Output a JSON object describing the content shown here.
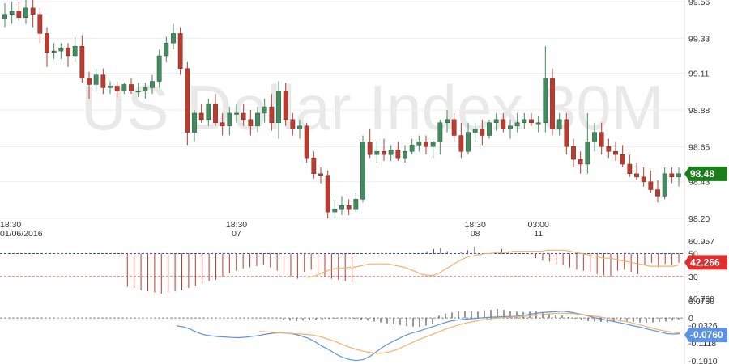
{
  "watermark": "US Dollar Index 30M",
  "chart_data": [
    {
      "type": "candlestick",
      "name": "main",
      "title": "US Dollar Index 30M",
      "last_value": "98.48",
      "colors": {
        "up": "#3f8f5e",
        "down": "#c0392b",
        "badge": "#1a7f1a"
      },
      "y_ticks": [
        "99.56",
        "99.33",
        "99.11",
        "98.88",
        "98.65",
        "98.43",
        "98.20"
      ],
      "y_range": [
        98.2,
        99.56
      ],
      "x_labels": [
        {
          "i": 0,
          "time": "18:30",
          "date": "01/06/2016"
        },
        {
          "i": 33,
          "time": "18:30",
          "date": "07"
        },
        {
          "i": 67,
          "time": "18:30",
          "date": "08"
        },
        {
          "i": 76,
          "time": "03:00",
          "date": "11"
        }
      ],
      "candles": [
        [
          99.45,
          99.55,
          99.4,
          99.48
        ],
        [
          99.48,
          99.56,
          99.42,
          99.5
        ],
        [
          99.5,
          99.56,
          99.44,
          99.46
        ],
        [
          99.46,
          99.58,
          99.42,
          99.52
        ],
        [
          99.52,
          99.58,
          99.4,
          99.48
        ],
        [
          99.48,
          99.52,
          99.3,
          99.36
        ],
        [
          99.36,
          99.4,
          99.15,
          99.24
        ],
        [
          99.24,
          99.3,
          99.2,
          99.25
        ],
        [
          99.25,
          99.3,
          99.2,
          99.27
        ],
        [
          99.27,
          99.3,
          99.15,
          99.22
        ],
        [
          99.22,
          99.34,
          99.18,
          99.28
        ],
        [
          99.28,
          99.35,
          99.05,
          99.08
        ],
        [
          99.08,
          99.12,
          98.95,
          99.04
        ],
        [
          99.04,
          99.14,
          99.0,
          99.1
        ],
        [
          99.1,
          99.14,
          98.98,
          99.02
        ],
        [
          99.02,
          99.06,
          98.98,
          99.03
        ],
        [
          99.03,
          99.06,
          98.96,
          99.0
        ],
        [
          99.0,
          99.05,
          98.98,
          99.04
        ],
        [
          99.04,
          99.08,
          98.98,
          99.0
        ],
        [
          99.0,
          99.05,
          98.96,
          99.0
        ],
        [
          99.0,
          99.05,
          98.95,
          99.02
        ],
        [
          99.02,
          99.1,
          98.98,
          99.06
        ],
        [
          99.06,
          99.26,
          99.02,
          99.22
        ],
        [
          99.22,
          99.34,
          99.18,
          99.3
        ],
        [
          99.3,
          99.42,
          99.26,
          99.36
        ],
        [
          99.36,
          99.4,
          99.1,
          99.14
        ],
        [
          99.14,
          99.18,
          98.66,
          98.74
        ],
        [
          98.74,
          98.88,
          98.68,
          98.86
        ],
        [
          98.86,
          98.92,
          98.8,
          98.82
        ],
        [
          98.82,
          98.95,
          98.78,
          98.92
        ],
        [
          98.92,
          98.98,
          98.78,
          98.8
        ],
        [
          98.8,
          98.86,
          98.72,
          98.78
        ],
        [
          98.78,
          98.9,
          98.72,
          98.86
        ],
        [
          98.86,
          98.92,
          98.8,
          98.86
        ],
        [
          98.86,
          98.92,
          98.78,
          98.82
        ],
        [
          98.82,
          98.88,
          98.72,
          98.78
        ],
        [
          98.78,
          98.9,
          98.74,
          98.86
        ],
        [
          98.86,
          98.95,
          98.8,
          98.9
        ],
        [
          98.9,
          98.98,
          98.75,
          98.8
        ],
        [
          98.8,
          99.06,
          98.7,
          99.0
        ],
        [
          99.0,
          99.05,
          98.78,
          98.82
        ],
        [
          98.82,
          98.86,
          98.72,
          98.76
        ],
        [
          98.76,
          98.82,
          98.7,
          98.78
        ],
        [
          98.78,
          98.8,
          98.55,
          98.58
        ],
        [
          98.58,
          98.62,
          98.45,
          98.48
        ],
        [
          98.48,
          98.52,
          98.42,
          98.47
        ],
        [
          98.47,
          98.5,
          98.2,
          98.24
        ],
        [
          98.24,
          98.32,
          98.2,
          98.26
        ],
        [
          98.26,
          98.34,
          98.22,
          98.28
        ],
        [
          98.28,
          98.32,
          98.22,
          98.26
        ],
        [
          98.26,
          98.36,
          98.24,
          98.32
        ],
        [
          98.32,
          98.72,
          98.3,
          98.68
        ],
        [
          98.68,
          98.76,
          98.58,
          98.6
        ],
        [
          98.6,
          98.68,
          98.55,
          98.62
        ],
        [
          98.62,
          98.7,
          98.56,
          98.6
        ],
        [
          98.6,
          98.66,
          98.56,
          98.63
        ],
        [
          98.63,
          98.68,
          98.56,
          98.58
        ],
        [
          98.58,
          98.66,
          98.55,
          98.62
        ],
        [
          98.62,
          98.7,
          98.6,
          98.66
        ],
        [
          98.66,
          98.72,
          98.62,
          98.68
        ],
        [
          98.68,
          98.72,
          98.6,
          98.65
        ],
        [
          98.65,
          98.7,
          98.58,
          98.68
        ],
        [
          98.68,
          98.82,
          98.6,
          98.8
        ],
        [
          98.8,
          98.88,
          98.74,
          98.82
        ],
        [
          98.82,
          98.86,
          98.68,
          98.72
        ],
        [
          98.72,
          98.8,
          98.58,
          98.62
        ],
        [
          98.62,
          98.8,
          98.6,
          98.74
        ],
        [
          98.74,
          98.8,
          98.68,
          98.76
        ],
        [
          98.76,
          98.82,
          98.66,
          98.72
        ],
        [
          98.72,
          98.82,
          98.7,
          98.8
        ],
        [
          98.8,
          98.86,
          98.75,
          98.82
        ],
        [
          98.82,
          98.86,
          98.74,
          98.76
        ],
        [
          98.76,
          98.82,
          98.7,
          98.78
        ],
        [
          98.78,
          98.86,
          98.74,
          98.8
        ],
        [
          98.8,
          98.86,
          98.76,
          98.82
        ],
        [
          98.82,
          98.86,
          98.78,
          98.8
        ],
        [
          98.8,
          98.84,
          98.74,
          98.8
        ],
        [
          98.8,
          99.28,
          98.74,
          99.08
        ],
        [
          99.08,
          99.14,
          98.72,
          98.76
        ],
        [
          98.76,
          98.86,
          98.72,
          98.82
        ],
        [
          98.82,
          98.86,
          98.6,
          98.65
        ],
        [
          98.65,
          98.7,
          98.52,
          98.57
        ],
        [
          98.57,
          98.62,
          98.48,
          98.54
        ],
        [
          98.54,
          98.86,
          98.48,
          98.68
        ],
        [
          98.68,
          98.8,
          98.62,
          98.74
        ],
        [
          98.74,
          98.8,
          98.6,
          98.65
        ],
        [
          98.65,
          98.7,
          98.58,
          98.62
        ],
        [
          98.62,
          98.68,
          98.56,
          98.6
        ],
        [
          98.6,
          98.66,
          98.52,
          98.54
        ],
        [
          98.54,
          98.6,
          98.46,
          98.48
        ],
        [
          98.48,
          98.55,
          98.44,
          98.46
        ],
        [
          98.46,
          98.52,
          98.4,
          98.43
        ],
        [
          98.43,
          98.5,
          98.36,
          98.38
        ],
        [
          98.38,
          98.44,
          98.3,
          98.34
        ],
        [
          98.34,
          98.52,
          98.32,
          98.48
        ],
        [
          98.48,
          98.52,
          98.42,
          98.46
        ],
        [
          98.46,
          98.52,
          98.4,
          98.48
        ]
      ]
    },
    {
      "type": "histogram",
      "name": "oscillator-1",
      "last_value": "42.266",
      "colors": {
        "bar": "#c0392b",
        "bar_pos": "#555555",
        "signal": "#f5b16a",
        "badge": "#e02f2f",
        "level": "#e57373",
        "zero": "#3b4fbf"
      },
      "y_ticks": [
        "60.957",
        "50",
        "30",
        "10.760"
      ],
      "y_range": [
        10.76,
        60.957
      ],
      "levels": [
        50,
        30
      ],
      "values": [
        50,
        50,
        50,
        50,
        50,
        50,
        50,
        50,
        50,
        50,
        50,
        50,
        50,
        50,
        50,
        50,
        50,
        50,
        21,
        20,
        18,
        17,
        16,
        15,
        16,
        17,
        18,
        20,
        22,
        24,
        26,
        27,
        30,
        33,
        35,
        37,
        38,
        39,
        40,
        38,
        35,
        32,
        30,
        28,
        34,
        36,
        33,
        30,
        28,
        27,
        26,
        25,
        50,
        50,
        50,
        50,
        50,
        50,
        50,
        50,
        50,
        50,
        52,
        54,
        55,
        52,
        50,
        51,
        53,
        56,
        50,
        50,
        50,
        54,
        52,
        50,
        50,
        50,
        46,
        44,
        43,
        41,
        40,
        38,
        36,
        35,
        34,
        32,
        31,
        30,
        35,
        36,
        34,
        32,
        40,
        42,
        38,
        41,
        40,
        42
      ],
      "signal": [
        null,
        null,
        null,
        null,
        null,
        null,
        null,
        null,
        null,
        null,
        null,
        null,
        null,
        null,
        null,
        null,
        null,
        null,
        null,
        null,
        null,
        null,
        null,
        null,
        null,
        null,
        null,
        null,
        null,
        null,
        null,
        null,
        null,
        null,
        null,
        null,
        null,
        null,
        null,
        null,
        null,
        null,
        null,
        null,
        null,
        null,
        null,
        null,
        null,
        null,
        null,
        null,
        null,
        29,
        30,
        32,
        34,
        36,
        37,
        37,
        38,
        38,
        39,
        40,
        41,
        41,
        41,
        41,
        40,
        39,
        38,
        36,
        34,
        32,
        31,
        31,
        33,
        36,
        39,
        42,
        45,
        47,
        48,
        49,
        50,
        50,
        51,
        51,
        51,
        52,
        52,
        52,
        52,
        52,
        52,
        53,
        53,
        53,
        53,
        52,
        51,
        50,
        49,
        48,
        47,
        46,
        46,
        45,
        44,
        43,
        42,
        41,
        40,
        39,
        39,
        39,
        39,
        39,
        40
      ]
    },
    {
      "type": "histogram",
      "name": "oscillator-2",
      "last_value": "-0.0760",
      "colors": {
        "bar": "#333333",
        "macd": "#5b93e6",
        "signal": "#f5b16a",
        "badge": "#5b93e6",
        "zero": "#888888"
      },
      "y_ticks": [
        "0.0760",
        "0",
        "-0.0326",
        "-0.1118",
        "-0.1910"
      ],
      "y_range": [
        -0.191,
        0.076
      ],
      "values": [
        0,
        0,
        0,
        0,
        0,
        0,
        0,
        0,
        0,
        0,
        0,
        0,
        0,
        0,
        0,
        0,
        0,
        0,
        0,
        0,
        0,
        0,
        0,
        0,
        0,
        0,
        0,
        0,
        0,
        0,
        0,
        0,
        0,
        0,
        0,
        0,
        0,
        0,
        0,
        0,
        0,
        0,
        0,
        -0.01,
        -0.012,
        -0.014,
        -0.012,
        -0.01,
        -0.008,
        -0.006,
        -0.004,
        -0.003,
        -0.002,
        0.0,
        -0.004,
        -0.008,
        -0.012,
        -0.016,
        -0.02,
        -0.024,
        -0.028,
        -0.032,
        -0.036,
        -0.038,
        -0.04,
        -0.034,
        -0.026,
        0.01,
        0.02,
        0.024,
        0.03,
        0.032,
        0.03,
        0.028,
        0.034,
        0.036,
        0.04,
        0.036,
        0.03,
        0.028,
        0.026,
        0.028,
        0.03,
        0.026,
        0.02,
        0.014,
        0.01,
        0.004,
        -0.004,
        -0.01,
        -0.014,
        -0.016,
        -0.018,
        -0.02,
        -0.018,
        -0.016,
        -0.014,
        -0.018,
        -0.02,
        -0.022,
        -0.02,
        -0.018,
        -0.016,
        -0.012,
        -0.006
      ],
      "macd": [
        -0.035,
        -0.04,
        -0.05,
        -0.065,
        -0.075,
        -0.08,
        -0.083,
        -0.085,
        -0.087,
        -0.088,
        -0.086,
        -0.082,
        -0.078,
        -0.072,
        -0.068,
        -0.066,
        -0.068,
        -0.072,
        -0.08,
        -0.09,
        -0.105,
        -0.125,
        -0.14,
        -0.16,
        -0.175,
        -0.185,
        -0.19,
        -0.186,
        -0.172,
        -0.15,
        -0.128,
        -0.11,
        -0.095,
        -0.08,
        -0.068,
        -0.06,
        -0.05,
        -0.04,
        -0.03,
        -0.02,
        -0.012,
        -0.008,
        -0.005,
        -0.003,
        0.0,
        0.002,
        0.004,
        0.005,
        0.006,
        0.007,
        0.01,
        0.015,
        0.02,
        0.024,
        0.026,
        0.028,
        0.03,
        0.026,
        0.02,
        0.014,
        0.006,
        -0.002,
        -0.008,
        -0.014,
        -0.02,
        -0.026,
        -0.034,
        -0.04,
        -0.048,
        -0.055,
        -0.062,
        -0.07,
        -0.072,
        -0.07
      ],
      "signal": [
        null,
        null,
        null,
        null,
        null,
        null,
        null,
        null,
        null,
        null,
        null,
        null,
        -0.06,
        -0.062,
        -0.064,
        -0.066,
        -0.068,
        -0.07,
        -0.072,
        -0.074,
        -0.078,
        -0.085,
        -0.095,
        -0.105,
        -0.118,
        -0.13,
        -0.14,
        -0.148,
        -0.154,
        -0.158,
        -0.156,
        -0.15,
        -0.14,
        -0.126,
        -0.112,
        -0.098,
        -0.086,
        -0.074,
        -0.062,
        -0.05,
        -0.04,
        -0.03,
        -0.022,
        -0.016,
        -0.01,
        -0.006,
        -0.002,
        0.001,
        0.003,
        0.005,
        0.007,
        0.009,
        0.012,
        0.015,
        0.018,
        0.02,
        0.021,
        0.02,
        0.018,
        0.014,
        0.01,
        0.006,
        0.001,
        -0.004,
        -0.01,
        -0.016,
        -0.022,
        -0.03,
        -0.038,
        -0.046,
        -0.054,
        -0.06,
        -0.064,
        -0.068
      ]
    }
  ]
}
